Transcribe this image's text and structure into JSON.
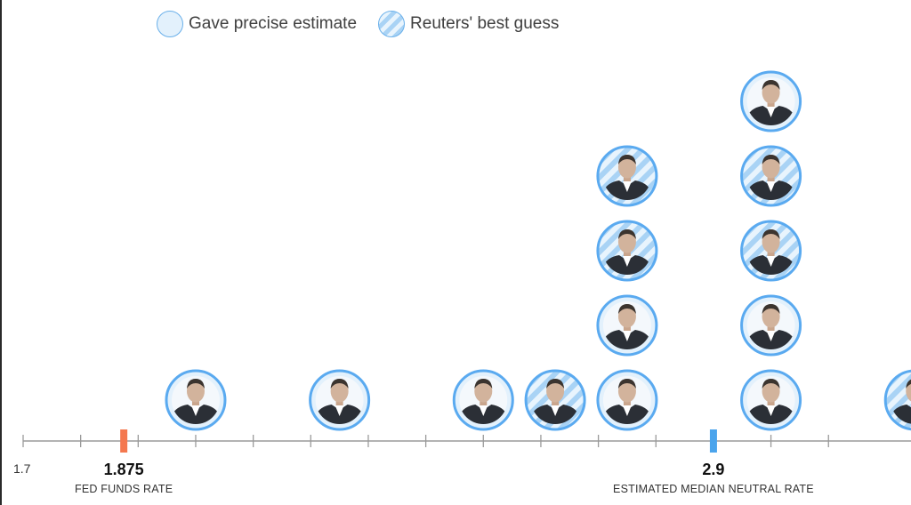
{
  "legend": {
    "precise_label": "Gave precise estimate",
    "guess_label": "Reuters' best guess"
  },
  "colors": {
    "circle_stroke": "#5aaaf0",
    "circle_fill": "#e3f1fc",
    "stripe": "#a9d3f5",
    "fed_funds_marker": "#f4784f",
    "median_marker": "#4ba4ec",
    "axis": "#9a9a9a"
  },
  "chart_data": {
    "type": "scatter",
    "subtype": "dot-plot",
    "xlim": [
      1.7,
      3.1
    ],
    "tick_step": 0.1,
    "ticks_labeled": [
      "1.7"
    ],
    "markers": [
      {
        "value": 1.875,
        "label": "1.875",
        "caption": "FED FUNDS RATE",
        "color": "#f4784f"
      },
      {
        "value": 2.9,
        "label": "2.9",
        "caption": "ESTIMATED MEDIAN NEUTRAL RATE",
        "color": "#4ba4ec"
      }
    ],
    "points": [
      {
        "x": 2.0,
        "stack": 0,
        "estimate": "precise"
      },
      {
        "x": 2.25,
        "stack": 0,
        "estimate": "precise"
      },
      {
        "x": 2.5,
        "stack": 0,
        "estimate": "precise"
      },
      {
        "x": 2.625,
        "stack": 0,
        "estimate": "guess"
      },
      {
        "x": 2.75,
        "stack": 0,
        "estimate": "precise"
      },
      {
        "x": 2.75,
        "stack": 1,
        "estimate": "precise"
      },
      {
        "x": 2.75,
        "stack": 2,
        "estimate": "guess"
      },
      {
        "x": 2.75,
        "stack": 3,
        "estimate": "guess"
      },
      {
        "x": 3.0,
        "stack": 0,
        "estimate": "precise"
      },
      {
        "x": 3.0,
        "stack": 1,
        "estimate": "precise"
      },
      {
        "x": 3.0,
        "stack": 2,
        "estimate": "guess"
      },
      {
        "x": 3.0,
        "stack": 3,
        "estimate": "guess"
      },
      {
        "x": 3.0,
        "stack": 4,
        "estimate": "precise"
      },
      {
        "x": 3.25,
        "stack": 0,
        "estimate": "guess"
      }
    ]
  }
}
